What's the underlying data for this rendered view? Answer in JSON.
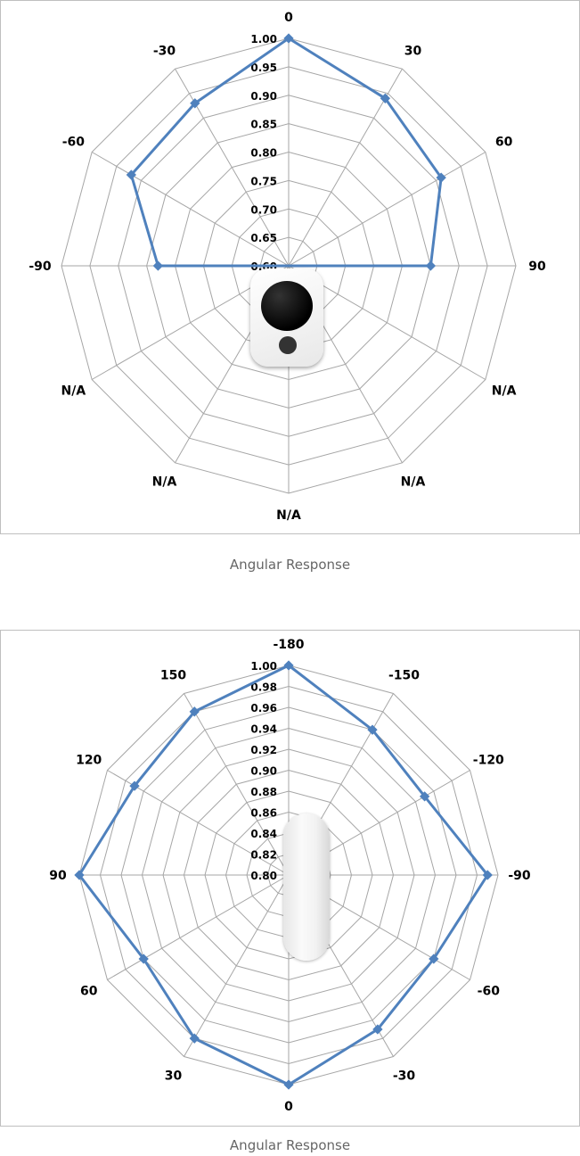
{
  "chart_data": [
    {
      "type": "radar",
      "categories": [
        "0",
        "30",
        "60",
        "90",
        "N/A",
        "N/A",
        "N/A",
        "N/A",
        "N/A",
        "-90",
        "-60",
        "-30"
      ],
      "values": [
        1.0,
        0.94,
        0.91,
        0.85,
        null,
        null,
        null,
        null,
        null,
        0.83,
        0.92,
        0.93
      ],
      "rlim": [
        0.6,
        1.0
      ],
      "ticks": [
        "0.60",
        "0.65",
        "0.70",
        "0.75",
        "0.80",
        "0.85",
        "0.90",
        "0.95",
        "1.00"
      ],
      "color": "#4f81bd",
      "grid": true,
      "caption": "Angular Response"
    },
    {
      "type": "radar",
      "categories": [
        "-180",
        "-150",
        "-120",
        "-90",
        "-60",
        "-30",
        "0",
        "30",
        "60",
        "90",
        "120",
        "150"
      ],
      "values": [
        1.0,
        0.96,
        0.95,
        0.99,
        0.96,
        0.97,
        1.0,
        0.98,
        0.96,
        1.0,
        0.97,
        0.98
      ],
      "rlim": [
        0.8,
        1.0
      ],
      "ticks": [
        "0.80",
        "0.82",
        "0.84",
        "0.86",
        "0.88",
        "0.90",
        "0.92",
        "0.94",
        "0.96",
        "0.98",
        "1.00"
      ],
      "color": "#4f81bd",
      "grid": true,
      "caption": "Angular Response"
    }
  ]
}
